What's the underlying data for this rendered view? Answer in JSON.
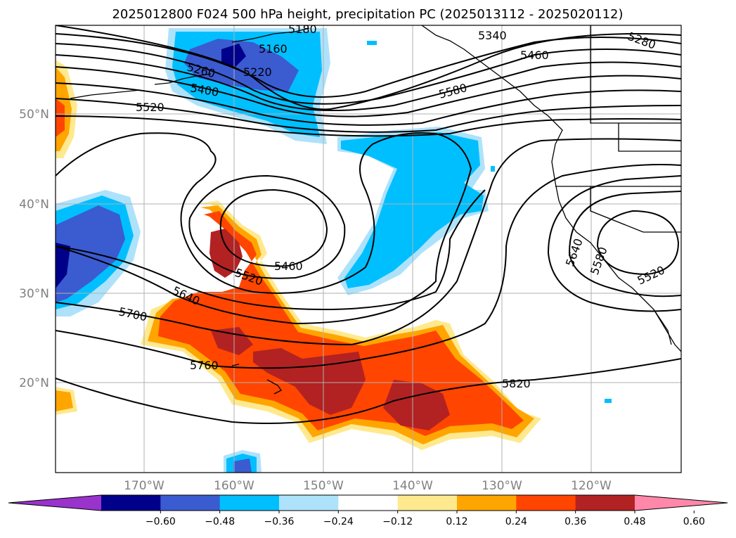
{
  "title": "2025012800 F024 500 hPa height, precipitation PC (2025013112 - 2025020112)",
  "lat_labels": [
    "50°N",
    "40°N",
    "30°N",
    "20°N"
  ],
  "lon_labels": [
    "170°W",
    "160°W",
    "150°W",
    "140°W",
    "130°W",
    "120°W"
  ],
  "contour_labels": [
    "5180",
    "5160",
    "5340",
    "5280",
    "5460",
    "5260",
    "5220",
    "5400",
    "5580",
    "5520",
    "5460",
    "5520",
    "5640",
    "5700",
    "5760",
    "5820",
    "5640",
    "5580",
    "5520"
  ],
  "colorbar": {
    "ticks": [
      "−0.60",
      "−0.48",
      "−0.36",
      "−0.24",
      "−0.12",
      "0.12",
      "0.24",
      "0.36",
      "0.48",
      "0.60"
    ],
    "colors": [
      "#9933cc",
      "#00008b",
      "#3b5bd1",
      "#00bfff",
      "#aee2fa",
      "#ffffff",
      "#ffe98f",
      "#ffa500",
      "#ff4500",
      "#b22222",
      "#ff88aa"
    ]
  }
}
